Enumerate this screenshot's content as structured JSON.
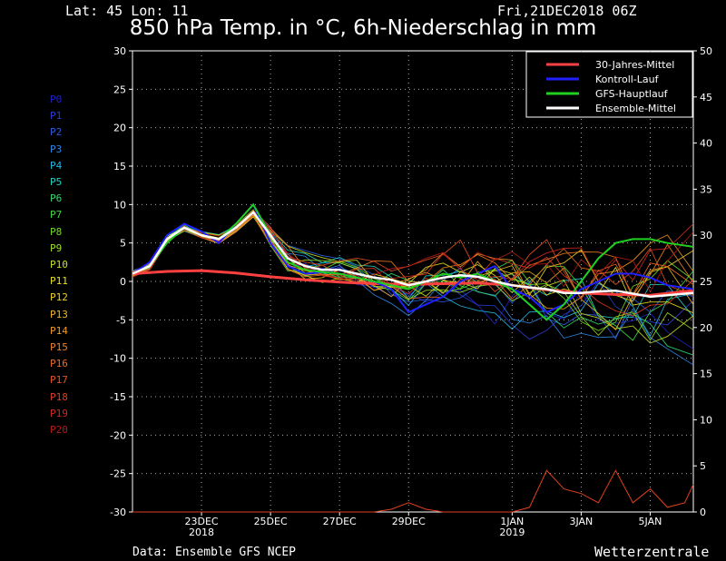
{
  "header": {
    "latlon": "Lat: 45 Lon: 11",
    "run": "Fri,21DEC2018 06Z",
    "title": "850 hPa Temp. in °C, 6h-Niederschlag in mm"
  },
  "footer": {
    "source": "Data: Ensemble GFS NCEP",
    "brand": "Wetterzentrale"
  },
  "members": [
    {
      "name": "P0",
      "color": "#2020c8"
    },
    {
      "name": "P1",
      "color": "#2a3cd8"
    },
    {
      "name": "P2",
      "color": "#2c5ae0"
    },
    {
      "name": "P3",
      "color": "#2f86e4"
    },
    {
      "name": "P4",
      "color": "#22b8e4"
    },
    {
      "name": "P5",
      "color": "#20d2c4"
    },
    {
      "name": "P6",
      "color": "#30d870"
    },
    {
      "name": "P7",
      "color": "#40d840"
    },
    {
      "name": "P8",
      "color": "#70dc20"
    },
    {
      "name": "P9",
      "color": "#a0e020"
    },
    {
      "name": "P10",
      "color": "#c8e020"
    },
    {
      "name": "P11",
      "color": "#e8e020"
    },
    {
      "name": "P12",
      "color": "#f0d020"
    },
    {
      "name": "P13",
      "color": "#f0b420"
    },
    {
      "name": "P14",
      "color": "#f09a20"
    },
    {
      "name": "P15",
      "color": "#f08020"
    },
    {
      "name": "P16",
      "color": "#ec6a20"
    },
    {
      "name": "P17",
      "color": "#e85020"
    },
    {
      "name": "P18",
      "color": "#e03c20"
    },
    {
      "name": "P19",
      "color": "#d02820"
    },
    {
      "name": "P20",
      "color": "#b81818"
    }
  ],
  "chart_data": {
    "type": "line",
    "y_left": {
      "min": -30,
      "max": 30,
      "ticks": [
        -30,
        -25,
        -20,
        -15,
        -10,
        -5,
        0,
        5,
        10,
        15,
        20,
        25,
        30
      ]
    },
    "y_right": {
      "min": 0,
      "max": 50,
      "ticks": [
        0,
        5,
        10,
        15,
        20,
        25,
        30,
        35,
        40,
        45,
        50
      ]
    },
    "x_ticks": [
      {
        "label": "23DEC",
        "sub": "2018",
        "day": 2
      },
      {
        "label": "25DEC",
        "sub": "",
        "day": 4
      },
      {
        "label": "27DEC",
        "sub": "",
        "day": 6
      },
      {
        "label": "29DEC",
        "sub": "",
        "day": 8
      },
      {
        "label": "1JAN",
        "sub": "2019",
        "day": 11
      },
      {
        "label": "3JAN",
        "sub": "",
        "day": 13
      },
      {
        "label": "5JAN",
        "sub": "",
        "day": 15
      }
    ],
    "x_range_days": [
      0,
      16.25
    ],
    "grid": true,
    "legend": {
      "placement": "top-right",
      "entries": [
        {
          "name": "30-Jahres-Mittel",
          "color": "#ff4040"
        },
        {
          "name": "Kontroll-Lauf",
          "color": "#2020ff"
        },
        {
          "name": "GFS-Hauptlauf",
          "color": "#20d020"
        },
        {
          "name": "Ensemble-Mittel",
          "color": "#ffffff"
        }
      ]
    },
    "climatology": [
      [
        0,
        1
      ],
      [
        1,
        1.3
      ],
      [
        2,
        1.4
      ],
      [
        3,
        1.1
      ],
      [
        4,
        0.6
      ],
      [
        5,
        0.2
      ],
      [
        6,
        -0.1
      ],
      [
        7,
        -0.3
      ],
      [
        8,
        -0.4
      ],
      [
        9,
        -0.3
      ],
      [
        10,
        -0.2
      ],
      [
        11,
        -0.5
      ],
      [
        12,
        -1.1
      ],
      [
        13,
        -1.5
      ],
      [
        14,
        -1.7
      ],
      [
        15,
        -1.8
      ],
      [
        16.25,
        -1.2
      ]
    ],
    "ensemble_mean": [
      [
        0,
        1
      ],
      [
        0.5,
        2
      ],
      [
        1,
        5.5
      ],
      [
        1.5,
        7
      ],
      [
        2,
        6
      ],
      [
        2.5,
        5.5
      ],
      [
        3,
        7
      ],
      [
        3.5,
        9
      ],
      [
        4,
        6
      ],
      [
        4.5,
        3
      ],
      [
        5,
        2
      ],
      [
        5.5,
        1.5
      ],
      [
        6,
        1.5
      ],
      [
        6.5,
        1
      ],
      [
        7,
        0.5
      ],
      [
        7.5,
        0.2
      ],
      [
        8,
        -0.5
      ],
      [
        8.5,
        0
      ],
      [
        9,
        0.5
      ],
      [
        9.5,
        0.8
      ],
      [
        10,
        0.6
      ],
      [
        10.5,
        0
      ],
      [
        11,
        -0.5
      ],
      [
        11.5,
        -0.8
      ],
      [
        12,
        -1
      ],
      [
        12.5,
        -1.5
      ],
      [
        13,
        -1.5
      ],
      [
        13.5,
        -1.3
      ],
      [
        14,
        -1.2
      ],
      [
        14.5,
        -1.6
      ],
      [
        15,
        -2
      ],
      [
        15.5,
        -1.8
      ],
      [
        16.25,
        -1.5
      ]
    ],
    "control_run": [
      [
        0,
        1
      ],
      [
        0.5,
        2.5
      ],
      [
        1,
        6
      ],
      [
        1.5,
        7.5
      ],
      [
        2,
        6.5
      ],
      [
        2.5,
        5
      ],
      [
        3,
        7.5
      ],
      [
        3.5,
        10
      ],
      [
        4,
        5
      ],
      [
        4.5,
        2
      ],
      [
        5,
        1
      ],
      [
        5.5,
        1.2
      ],
      [
        6,
        1
      ],
      [
        6.5,
        0.5
      ],
      [
        7,
        0
      ],
      [
        7.5,
        -1
      ],
      [
        8,
        -4
      ],
      [
        8.5,
        -3
      ],
      [
        9,
        -2
      ],
      [
        9.5,
        0
      ],
      [
        10,
        1
      ],
      [
        10.5,
        2
      ],
      [
        11,
        -1
      ],
      [
        11.5,
        -2
      ],
      [
        12,
        -4
      ],
      [
        12.5,
        -3
      ],
      [
        13,
        -1
      ],
      [
        13.5,
        0
      ],
      [
        14,
        1
      ],
      [
        14.5,
        1
      ],
      [
        15,
        0.5
      ],
      [
        15.5,
        -0.5
      ],
      [
        16.25,
        -1
      ]
    ],
    "main_run": [
      [
        0,
        1
      ],
      [
        0.5,
        2
      ],
      [
        1,
        5
      ],
      [
        1.5,
        7
      ],
      [
        2,
        6
      ],
      [
        2.5,
        5.5
      ],
      [
        3,
        7.5
      ],
      [
        3.5,
        10
      ],
      [
        4,
        6
      ],
      [
        4.5,
        2.5
      ],
      [
        5,
        1.5
      ],
      [
        5.5,
        1.2
      ],
      [
        6,
        1
      ],
      [
        6.5,
        0.5
      ],
      [
        7,
        0
      ],
      [
        7.5,
        -0.5
      ],
      [
        8,
        -1
      ],
      [
        8.5,
        0
      ],
      [
        9,
        1
      ],
      [
        9.5,
        0.5
      ],
      [
        10,
        1
      ],
      [
        10.5,
        0
      ],
      [
        11,
        -1
      ],
      [
        11.5,
        -3
      ],
      [
        12,
        -5
      ],
      [
        12.5,
        -3
      ],
      [
        13,
        0
      ],
      [
        13.5,
        3
      ],
      [
        14,
        5
      ],
      [
        14.5,
        5.5
      ],
      [
        15,
        5.5
      ],
      [
        15.5,
        5
      ],
      [
        16.25,
        4.5
      ]
    ],
    "precip_mm_right_axis": [
      [
        0,
        0
      ],
      [
        7,
        0
      ],
      [
        7.5,
        0.3
      ],
      [
        8,
        1
      ],
      [
        8.5,
        0.3
      ],
      [
        9,
        0
      ],
      [
        11,
        0
      ],
      [
        11.5,
        0.5
      ],
      [
        12,
        4.5
      ],
      [
        12.5,
        2.5
      ],
      [
        13,
        2
      ],
      [
        13.5,
        1
      ],
      [
        14,
        4.5
      ],
      [
        14.5,
        1
      ],
      [
        15,
        2.5
      ],
      [
        15.5,
        0.5
      ],
      [
        16,
        1
      ],
      [
        16.25,
        3
      ]
    ]
  }
}
